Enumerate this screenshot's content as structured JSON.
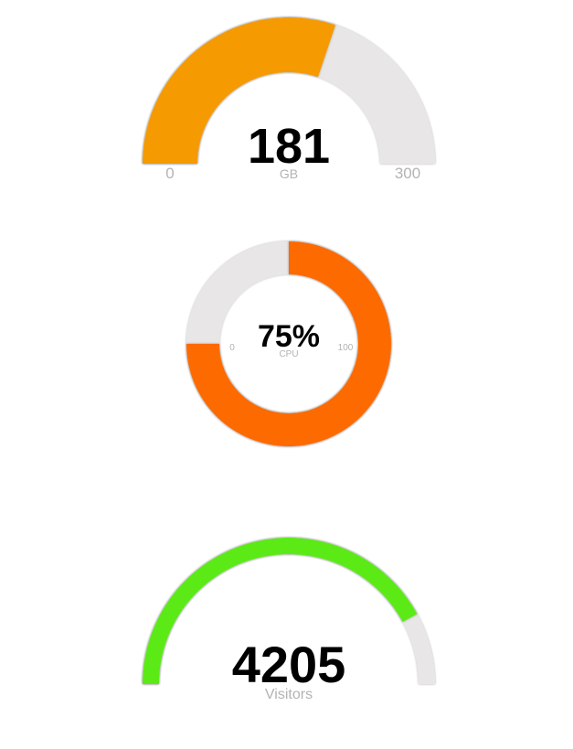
{
  "colors": {
    "track": "#e8e6e6",
    "storage": "#f59a00",
    "cpu": "#fd6a02",
    "visitors": "#5bea17"
  },
  "chart_data": [
    {
      "type": "gauge",
      "value": 181,
      "value_text": "181",
      "unit": "GB",
      "min": 0,
      "max": 300,
      "min_text": "0",
      "max_text": "300",
      "shape": "semicircle"
    },
    {
      "type": "gauge",
      "value": 75,
      "value_text": "75%",
      "unit": "CPU",
      "min": 0,
      "max": 100,
      "min_text": "0",
      "max_text": "100",
      "shape": "donut"
    },
    {
      "type": "gauge",
      "value": 4205,
      "value_text": "4205",
      "unit": "Visitors",
      "min": 0,
      "max": 5000,
      "shape": "semicircle"
    }
  ]
}
